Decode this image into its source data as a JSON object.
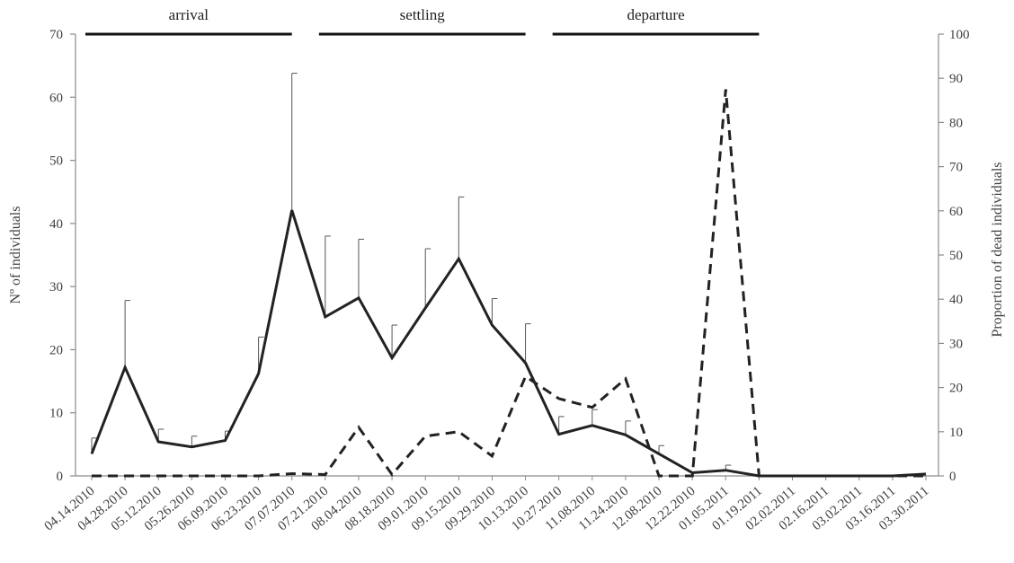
{
  "chart_data": {
    "type": "line",
    "title": "",
    "x": [
      "04.14.2010",
      "04.28.2010",
      "05.12.2010",
      "05.26.2010",
      "06.09.2010",
      "06.23.2010",
      "07.07.2010",
      "07.21.2010",
      "08.04.2010",
      "08.18.2010",
      "09.01.2010",
      "09.15.2010",
      "09.29.2010",
      "10.13.2010",
      "10.27.2010",
      "11.08.2010",
      "11.24.2010",
      "12.08.2010",
      "12.22.2010",
      "01.05.2011",
      "01.19.2011",
      "02.02.2011",
      "02.16.2011",
      "03.02.2011",
      "03.16.2011",
      "03.30.2011"
    ],
    "ylabel": "Nº of individuals",
    "ylim": [
      0,
      70
    ],
    "yticks": [
      "0",
      "10",
      "20",
      "30",
      "40",
      "50",
      "60",
      "70"
    ],
    "y2label": "Proportion of dead individuals",
    "y2lim": [
      0,
      100
    ],
    "y2ticks": [
      "0",
      "10",
      "20",
      "30",
      "40",
      "50",
      "60",
      "70",
      "80",
      "90",
      "100"
    ],
    "grid": false,
    "series": [
      {
        "axis": "left",
        "style": "solid",
        "color": "#222222",
        "values": [
          3.5,
          17.2,
          5.4,
          4.6,
          5.6,
          16.2,
          42.1,
          25.2,
          28.2,
          18.7,
          26.6,
          34.4,
          23.9,
          17.9,
          6.6,
          8.0,
          6.5,
          3.5,
          0.5,
          0.9,
          0.0,
          0.0,
          0.0,
          0.0,
          0.0,
          0.3
        ],
        "error": [
          2.5,
          10.6,
          2.0,
          1.7,
          1.5,
          5.8,
          21.7,
          12.8,
          9.3,
          5.2,
          9.4,
          9.8,
          4.2,
          6.2,
          2.8,
          2.5,
          2.2,
          1.3,
          null,
          0.8,
          null,
          null,
          null,
          null,
          null,
          null
        ]
      },
      {
        "axis": "right",
        "style": "dashed",
        "color": "#222222",
        "values": [
          0,
          0,
          0,
          0,
          0,
          0,
          0.5,
          0.3,
          11,
          0.3,
          9,
          10,
          4.5,
          22.5,
          17.5,
          15.5,
          22,
          0,
          0,
          87.5,
          0,
          0,
          0,
          0,
          0,
          0
        ]
      }
    ],
    "annotations": [
      {
        "label": "arrival",
        "from": "04.14.2010",
        "to": "07.07.2010"
      },
      {
        "label": "settling",
        "from": "07.21.2010",
        "to": "10.13.2010"
      },
      {
        "label": "departure",
        "from": "10.27.2010",
        "to": "01.19.2011"
      }
    ]
  }
}
